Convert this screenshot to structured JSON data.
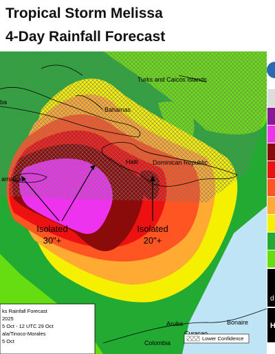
{
  "title": [
    "Tropical Storm Melissa",
    "4-Day Rainfall Forecast"
  ],
  "places": {
    "cuba": "ba",
    "turks": "Turks and Caicos Islands",
    "bahamas": "Bahamas",
    "haiti": "Haiti",
    "dominican": "Dominican Republic",
    "jamaica": "amaica",
    "aruba": "Aruba",
    "curacao": "Curacao",
    "bonaire": "Bonaire",
    "colombia": "Colombia"
  },
  "annotations": [
    {
      "line1": "Isolated",
      "line2": "30\"+"
    },
    {
      "line1": "Isolated",
      "line2": "20\"+"
    }
  ],
  "info_box": [
    "ks Rainfall Forecast",
    "2025",
    "5 Oct - 12 UTC 29 Oct",
    "ala/Tinoco-Morales",
    "5 Oct"
  ],
  "legend": {
    "lower_confidence": "Lower Confidence"
  },
  "side_text": [
    "d",
    "H"
  ]
}
